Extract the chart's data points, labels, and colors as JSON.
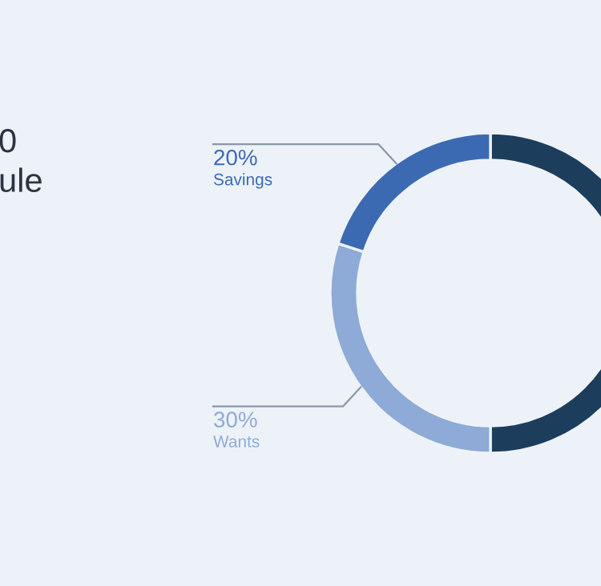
{
  "chart_data": {
    "type": "donut",
    "title": "0\nule",
    "categories": [
      null,
      "Wants",
      "Savings"
    ],
    "values": [
      50,
      30,
      20
    ],
    "colors": [
      "#1d3d5c",
      "#8eaad6",
      "#3b6ab3"
    ],
    "value_labels": [
      null,
      "30%",
      "20%"
    ],
    "legend": false
  }
}
